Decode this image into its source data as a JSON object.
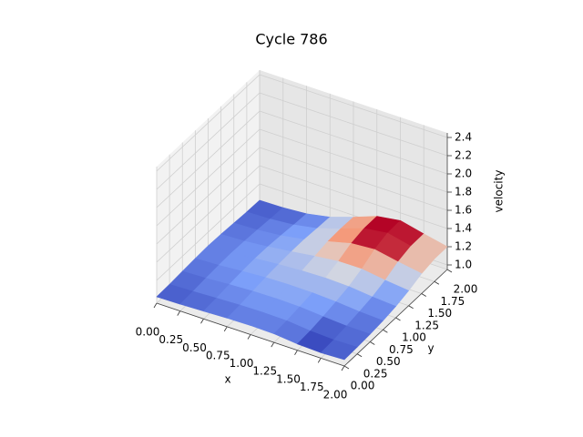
{
  "chart_data": {
    "type": "surface",
    "title": "Cycle 786",
    "xlabel": "x",
    "ylabel": "y",
    "zlabel": "velocity",
    "xlim": [
      0,
      2
    ],
    "ylim": [
      0,
      2
    ],
    "zlim": [
      0.95,
      2.45
    ],
    "xticks": [
      {
        "value": 0,
        "label": "0.00"
      },
      {
        "value": 0.25,
        "label": "0.25"
      },
      {
        "value": 0.5,
        "label": "0.50"
      },
      {
        "value": 0.75,
        "label": "0.75"
      },
      {
        "value": 1,
        "label": "1.00"
      },
      {
        "value": 1.25,
        "label": "1.25"
      },
      {
        "value": 1.5,
        "label": "1.50"
      },
      {
        "value": 1.75,
        "label": "1.75"
      },
      {
        "value": 2,
        "label": "2.00"
      }
    ],
    "yticks": [
      {
        "value": 0,
        "label": "0.00"
      },
      {
        "value": 0.25,
        "label": "0.25"
      },
      {
        "value": 0.5,
        "label": "0.50"
      },
      {
        "value": 0.75,
        "label": "0.75"
      },
      {
        "value": 1,
        "label": "1.00"
      },
      {
        "value": 1.25,
        "label": "1.25"
      },
      {
        "value": 1.5,
        "label": "1.50"
      },
      {
        "value": 1.75,
        "label": "1.75"
      },
      {
        "value": 2,
        "label": "2.00"
      }
    ],
    "zticks": [
      {
        "value": 1,
        "label": "1.0"
      },
      {
        "value": 1.2,
        "label": "1.2"
      },
      {
        "value": 1.4,
        "label": "1.4"
      },
      {
        "value": 1.6,
        "label": "1.6"
      },
      {
        "value": 1.8,
        "label": "1.8"
      },
      {
        "value": 2,
        "label": "2.0"
      },
      {
        "value": 2.2,
        "label": "2.2"
      },
      {
        "value": 2.4,
        "label": "2.4"
      }
    ],
    "colormap": "coolwarm",
    "grid_x": [
      0.125,
      0.375,
      0.625,
      0.875,
      1.125,
      1.375,
      1.625,
      1.875
    ],
    "grid_y": [
      0.125,
      0.375,
      0.625,
      0.875,
      1.125,
      1.375,
      1.625,
      1.875
    ],
    "z": [
      [
        1.02,
        1.03,
        1.04,
        1.05,
        1.05,
        1.04,
        1.0,
        1.02
      ],
      [
        1.03,
        1.05,
        1.06,
        1.07,
        1.07,
        1.06,
        1.02,
        1.03
      ],
      [
        1.04,
        1.06,
        1.08,
        1.09,
        1.09,
        1.08,
        1.06,
        1.04
      ],
      [
        1.05,
        1.07,
        1.09,
        1.11,
        1.11,
        1.11,
        1.09,
        1.06
      ],
      [
        1.05,
        1.07,
        1.1,
        1.12,
        1.14,
        1.15,
        1.13,
        1.09
      ],
      [
        1.04,
        1.06,
        1.09,
        1.14,
        1.19,
        1.23,
        1.21,
        1.14
      ],
      [
        1.03,
        1.05,
        1.08,
        1.14,
        1.24,
        1.31,
        1.3,
        1.2
      ],
      [
        1.02,
        1.03,
        1.06,
        1.13,
        1.23,
        1.32,
        1.31,
        1.2
      ]
    ]
  }
}
